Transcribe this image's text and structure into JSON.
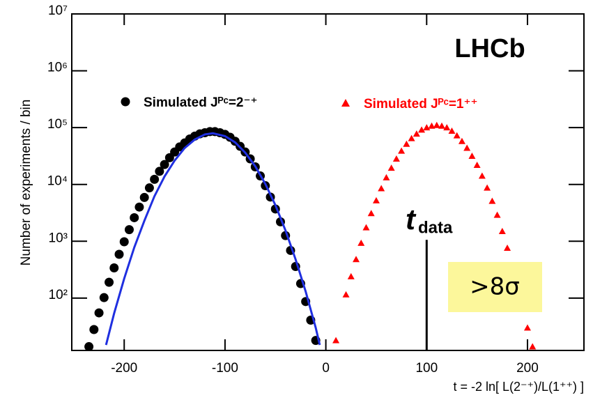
{
  "chart_data": {
    "type": "line",
    "experiment_label": "LHCb",
    "x_label": "t = -2 ln[ L(2⁻⁺)/L(1⁺⁺) ]",
    "y_label": "Number of experiments / bin",
    "log_y": true,
    "xlim": [
      -252,
      256
    ],
    "ylim": [
      12,
      10000000
    ],
    "xticks": [
      -200,
      -100,
      0,
      100,
      200
    ],
    "yticks": [
      {
        "value": 100,
        "label": "10²"
      },
      {
        "value": 1000,
        "label": "10³"
      },
      {
        "value": 10000,
        "label": "10⁴"
      },
      {
        "value": 100000,
        "label": "10⁵"
      },
      {
        "value": 1000000,
        "label": "10⁶"
      },
      {
        "value": 10000000,
        "label": "10⁷"
      }
    ],
    "series": [
      {
        "name": "Simulated Jᴾᶜ=2⁻⁺",
        "color": "#000000",
        "marker": "circle",
        "x": [
          -235,
          -230,
          -225,
          -220,
          -215,
          -210,
          -205,
          -200,
          -195,
          -190,
          -185,
          -180,
          -175,
          -170,
          -165,
          -160,
          -155,
          -150,
          -145,
          -140,
          -135,
          -130,
          -125,
          -120,
          -115,
          -110,
          -105,
          -100,
          -95,
          -90,
          -85,
          -80,
          -75,
          -70,
          -65,
          -60,
          -55,
          -50,
          -45,
          -40,
          -35,
          -30,
          -25,
          -20,
          -15,
          -10
        ],
        "values": [
          14,
          28,
          55,
          102,
          190,
          340,
          590,
          980,
          1600,
          2600,
          4000,
          5900,
          8700,
          12300,
          17000,
          22400,
          29500,
          37200,
          45700,
          53700,
          63100,
          70800,
          77600,
          81300,
          85100,
          85000,
          81300,
          75900,
          67600,
          57500,
          46800,
          37200,
          28200,
          20400,
          14100,
          9500,
          6000,
          3700,
          2200,
          1260,
          690,
          360,
          180,
          87,
          41,
          18
        ]
      },
      {
        "color": "#1f2fe0",
        "marker": "none",
        "x": [
          -218,
          -210,
          -200,
          -190,
          -180,
          -170,
          -160,
          -150,
          -140,
          -130,
          -120,
          -112,
          -100,
          -90,
          -80,
          -70,
          -60,
          -50,
          -40,
          -30,
          -20,
          -10,
          -6
        ],
        "values": [
          15,
          54,
          220,
          780,
          2300,
          6200,
          13800,
          26300,
          43700,
          61700,
          75900,
          79400,
          70800,
          55000,
          36300,
          20900,
          10200,
          4300,
          1550,
          480,
          130,
          30,
          15
        ]
      },
      {
        "name": "Simulated Jᴾᶜ=1⁺⁺",
        "color": "#ff0000",
        "marker": "triangle",
        "x": [
          10,
          20,
          25,
          30,
          35,
          40,
          45,
          50,
          55,
          60,
          65,
          70,
          75,
          80,
          85,
          90,
          95,
          100,
          105,
          110,
          115,
          120,
          125,
          130,
          135,
          140,
          145,
          150,
          155,
          160,
          165,
          170,
          175,
          180,
          185,
          190,
          195,
          200,
          205
        ],
        "values": [
          18,
          115,
          240,
          480,
          930,
          1740,
          3100,
          5200,
          8500,
          13200,
          19500,
          28200,
          38900,
          51300,
          64600,
          77600,
          91200,
          100000,
          107000,
          110000,
          107000,
          100000,
          87100,
          72400,
          57500,
          43700,
          31600,
          21900,
          14100,
          8700,
          5100,
          2900,
          1500,
          760,
          360,
          170,
          72,
          30,
          14
        ]
      }
    ],
    "marker": {
      "label": "t",
      "subscript": "data",
      "x": 100,
      "y": 1060
    },
    "highlight_label": ">8σ"
  }
}
